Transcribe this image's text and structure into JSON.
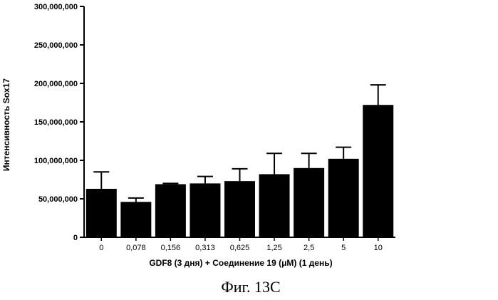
{
  "chart_data": {
    "type": "bar",
    "xlabel": "GDF8 (3 дня) + Соединение 19 (μM) (1 день)",
    "ylabel": "Интенсивность Sox17",
    "categories": [
      "0",
      "0,078",
      "0,156",
      "0,313",
      "0,625",
      "1,25",
      "2,5",
      "5",
      "10"
    ],
    "values": [
      63000000,
      46000000,
      69000000,
      70000000,
      73000000,
      82000000,
      90000000,
      102000000,
      172000000
    ],
    "errors": [
      22000000,
      5000000,
      1000000,
      9000000,
      16000000,
      27000000,
      19000000,
      15000000,
      26000000
    ],
    "ylim": [
      0,
      300000000
    ],
    "yticks": [
      0,
      50000000,
      100000000,
      150000000,
      200000000,
      250000000,
      300000000
    ],
    "ytick_labels": [
      "0",
      "50,000,000",
      "100,000,000",
      "150,000,000",
      "200,000,000",
      "250,000,000",
      "300,000,000"
    ],
    "bar_color": "#000000",
    "grid": false
  },
  "caption": "Фиг. 13С"
}
